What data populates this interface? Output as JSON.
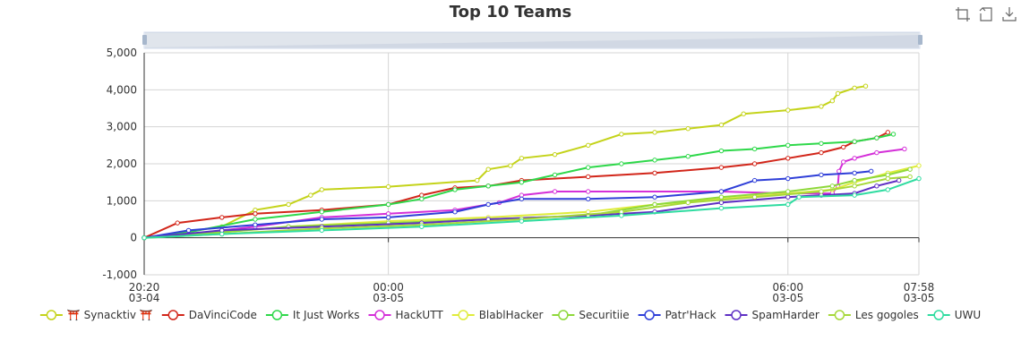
{
  "chart_data": {
    "type": "line",
    "title": "Top 10 Teams",
    "xlabel": "",
    "ylabel": "",
    "x_domain": [
      "2024-03-04 20:20",
      "2024-03-05 07:58"
    ],
    "ylim": [
      -1000,
      5000
    ],
    "y_ticks": [
      -1000,
      0,
      1000,
      2000,
      3000,
      4000,
      5000
    ],
    "y_tick_labels": [
      "-1,000",
      "0",
      "1,000",
      "2,000",
      "3,000",
      "4,000",
      "5,000"
    ],
    "x_ticks": [
      {
        "t": "2024-03-04 20:20",
        "time": "20:20",
        "date": "03-04"
      },
      {
        "t": "2024-03-05 00:00",
        "time": "00:00",
        "date": "03-05"
      },
      {
        "t": "2024-03-05 06:00",
        "time": "06:00",
        "date": "03-05"
      },
      {
        "t": "2024-03-05 07:58",
        "time": "07:58",
        "date": "03-05"
      }
    ],
    "grid": true,
    "legend_position": "bottom",
    "series": [
      {
        "name": "⛩️ Synacktiv ⛩️",
        "color": "#c4d31a",
        "points": [
          [
            "2024-03-04 20:20",
            0
          ],
          [
            "2024-03-04 21:30",
            300
          ],
          [
            "2024-03-04 22:00",
            750
          ],
          [
            "2024-03-04 22:30",
            900
          ],
          [
            "2024-03-04 22:50",
            1150
          ],
          [
            "2024-03-04 23:00",
            1300
          ],
          [
            "2024-03-05 00:00",
            1380
          ],
          [
            "2024-03-05 01:20",
            1550
          ],
          [
            "2024-03-05 01:30",
            1850
          ],
          [
            "2024-03-05 01:50",
            1950
          ],
          [
            "2024-03-05 02:00",
            2150
          ],
          [
            "2024-03-05 02:30",
            2250
          ],
          [
            "2024-03-05 03:00",
            2500
          ],
          [
            "2024-03-05 03:30",
            2800
          ],
          [
            "2024-03-05 04:00",
            2850
          ],
          [
            "2024-03-05 04:30",
            2950
          ],
          [
            "2024-03-05 05:00",
            3050
          ],
          [
            "2024-03-05 05:20",
            3350
          ],
          [
            "2024-03-05 06:00",
            3450
          ],
          [
            "2024-03-05 06:30",
            3550
          ],
          [
            "2024-03-05 06:40",
            3700
          ],
          [
            "2024-03-05 06:45",
            3900
          ],
          [
            "2024-03-05 07:00",
            4050
          ],
          [
            "2024-03-05 07:10",
            4100
          ]
        ]
      },
      {
        "name": "DaVinciCode",
        "color": "#d2261a",
        "points": [
          [
            "2024-03-04 20:20",
            0
          ],
          [
            "2024-03-04 20:50",
            400
          ],
          [
            "2024-03-04 21:30",
            550
          ],
          [
            "2024-03-04 22:00",
            650
          ],
          [
            "2024-03-04 23:00",
            750
          ],
          [
            "2024-03-05 00:00",
            900
          ],
          [
            "2024-03-05 00:30",
            1150
          ],
          [
            "2024-03-05 01:00",
            1350
          ],
          [
            "2024-03-05 01:30",
            1400
          ],
          [
            "2024-03-05 02:00",
            1550
          ],
          [
            "2024-03-05 03:00",
            1650
          ],
          [
            "2024-03-05 04:00",
            1750
          ],
          [
            "2024-03-05 05:00",
            1900
          ],
          [
            "2024-03-05 05:30",
            2000
          ],
          [
            "2024-03-05 06:00",
            2150
          ],
          [
            "2024-03-05 06:30",
            2300
          ],
          [
            "2024-03-05 06:50",
            2450
          ],
          [
            "2024-03-05 07:00",
            2600
          ],
          [
            "2024-03-05 07:20",
            2700
          ],
          [
            "2024-03-05 07:30",
            2850
          ]
        ]
      },
      {
        "name": "It Just Works",
        "color": "#2ed84a",
        "points": [
          [
            "2024-03-04 20:20",
            0
          ],
          [
            "2024-03-04 21:00",
            150
          ],
          [
            "2024-03-04 22:00",
            500
          ],
          [
            "2024-03-04 23:00",
            700
          ],
          [
            "2024-03-05 00:00",
            900
          ],
          [
            "2024-03-05 00:30",
            1050
          ],
          [
            "2024-03-05 01:00",
            1300
          ],
          [
            "2024-03-05 01:30",
            1400
          ],
          [
            "2024-03-05 02:00",
            1500
          ],
          [
            "2024-03-05 02:30",
            1700
          ],
          [
            "2024-03-05 03:00",
            1900
          ],
          [
            "2024-03-05 03:30",
            2000
          ],
          [
            "2024-03-05 04:00",
            2100
          ],
          [
            "2024-03-05 04:30",
            2200
          ],
          [
            "2024-03-05 05:00",
            2350
          ],
          [
            "2024-03-05 05:30",
            2400
          ],
          [
            "2024-03-05 06:00",
            2500
          ],
          [
            "2024-03-05 06:30",
            2550
          ],
          [
            "2024-03-05 07:00",
            2600
          ],
          [
            "2024-03-05 07:20",
            2700
          ],
          [
            "2024-03-05 07:35",
            2800
          ]
        ]
      },
      {
        "name": "HackUTT",
        "color": "#d42fd8",
        "points": [
          [
            "2024-03-04 20:20",
            0
          ],
          [
            "2024-03-04 21:00",
            100
          ],
          [
            "2024-03-04 22:00",
            300
          ],
          [
            "2024-03-04 23:00",
            550
          ],
          [
            "2024-03-05 00:00",
            650
          ],
          [
            "2024-03-05 01:00",
            750
          ],
          [
            "2024-03-05 01:40",
            950
          ],
          [
            "2024-03-05 02:00",
            1150
          ],
          [
            "2024-03-05 02:30",
            1250
          ],
          [
            "2024-03-05 03:00",
            1250
          ],
          [
            "2024-03-05 05:00",
            1250
          ],
          [
            "2024-03-05 06:00",
            1200
          ],
          [
            "2024-03-05 06:40",
            1200
          ],
          [
            "2024-03-05 06:45",
            1400
          ],
          [
            "2024-03-05 06:46",
            1800
          ],
          [
            "2024-03-05 06:50",
            2050
          ],
          [
            "2024-03-05 07:00",
            2150
          ],
          [
            "2024-03-05 07:20",
            2300
          ],
          [
            "2024-03-05 07:45",
            2400
          ]
        ]
      },
      {
        "name": "BlablHacker",
        "color": "#dfec3a",
        "points": [
          [
            "2024-03-04 20:20",
            0
          ],
          [
            "2024-03-04 21:30",
            150
          ],
          [
            "2024-03-04 22:30",
            300
          ],
          [
            "2024-03-05 00:00",
            450
          ],
          [
            "2024-03-05 01:30",
            550
          ],
          [
            "2024-03-05 03:00",
            700
          ],
          [
            "2024-03-05 04:00",
            900
          ],
          [
            "2024-03-05 05:00",
            1050
          ],
          [
            "2024-03-05 06:00",
            1200
          ],
          [
            "2024-03-05 06:40",
            1300
          ],
          [
            "2024-03-05 07:00",
            1500
          ],
          [
            "2024-03-05 07:30",
            1750
          ],
          [
            "2024-03-05 07:58",
            1950
          ]
        ]
      },
      {
        "name": "Securitiie",
        "color": "#8ed83a",
        "points": [
          [
            "2024-03-04 20:20",
            0
          ],
          [
            "2024-03-04 21:30",
            150
          ],
          [
            "2024-03-04 22:30",
            300
          ],
          [
            "2024-03-05 00:00",
            400
          ],
          [
            "2024-03-05 01:30",
            500
          ],
          [
            "2024-03-05 03:00",
            600
          ],
          [
            "2024-03-05 04:00",
            900
          ],
          [
            "2024-03-05 05:00",
            1100
          ],
          [
            "2024-03-05 06:00",
            1250
          ],
          [
            "2024-03-05 06:40",
            1400
          ],
          [
            "2024-03-05 07:00",
            1550
          ],
          [
            "2024-03-05 07:30",
            1700
          ],
          [
            "2024-03-05 07:50",
            1850
          ]
        ]
      },
      {
        "name": "Patr'Hack",
        "color": "#2f3fd8",
        "points": [
          [
            "2024-03-04 20:20",
            0
          ],
          [
            "2024-03-04 21:00",
            200
          ],
          [
            "2024-03-04 22:00",
            350
          ],
          [
            "2024-03-04 23:00",
            500
          ],
          [
            "2024-03-05 00:00",
            550
          ],
          [
            "2024-03-05 01:00",
            700
          ],
          [
            "2024-03-05 01:30",
            900
          ],
          [
            "2024-03-05 02:00",
            1050
          ],
          [
            "2024-03-05 03:00",
            1050
          ],
          [
            "2024-03-05 04:00",
            1100
          ],
          [
            "2024-03-05 05:00",
            1250
          ],
          [
            "2024-03-05 05:30",
            1550
          ],
          [
            "2024-03-05 06:00",
            1600
          ],
          [
            "2024-03-05 06:30",
            1700
          ],
          [
            "2024-03-05 07:00",
            1750
          ],
          [
            "2024-03-05 07:15",
            1800
          ]
        ]
      },
      {
        "name": "SpamHarder",
        "color": "#5e2fc4",
        "points": [
          [
            "2024-03-04 20:20",
            0
          ],
          [
            "2024-03-04 21:30",
            200
          ],
          [
            "2024-03-04 23:00",
            300
          ],
          [
            "2024-03-05 00:30",
            400
          ],
          [
            "2024-03-05 01:30",
            500
          ],
          [
            "2024-03-05 03:00",
            600
          ],
          [
            "2024-03-05 04:00",
            700
          ],
          [
            "2024-03-05 05:00",
            950
          ],
          [
            "2024-03-05 06:00",
            1100
          ],
          [
            "2024-03-05 06:30",
            1150
          ],
          [
            "2024-03-05 07:00",
            1200
          ],
          [
            "2024-03-05 07:20",
            1400
          ],
          [
            "2024-03-05 07:40",
            1550
          ]
        ]
      },
      {
        "name": "Les gogoles",
        "color": "#a6d83a",
        "points": [
          [
            "2024-03-04 20:20",
            0
          ],
          [
            "2024-03-04 21:30",
            100
          ],
          [
            "2024-03-04 23:00",
            250
          ],
          [
            "2024-03-05 00:30",
            350
          ],
          [
            "2024-03-05 02:00",
            500
          ],
          [
            "2024-03-05 03:30",
            700
          ],
          [
            "2024-03-05 04:30",
            950
          ],
          [
            "2024-03-05 05:30",
            1100
          ],
          [
            "2024-03-05 06:30",
            1250
          ],
          [
            "2024-03-05 07:00",
            1400
          ],
          [
            "2024-03-05 07:30",
            1600
          ],
          [
            "2024-03-05 07:50",
            1650
          ]
        ]
      },
      {
        "name": "UWU",
        "color": "#2fdca0",
        "points": [
          [
            "2024-03-04 20:20",
            0
          ],
          [
            "2024-03-04 21:30",
            100
          ],
          [
            "2024-03-04 23:00",
            200
          ],
          [
            "2024-03-05 00:30",
            300
          ],
          [
            "2024-03-05 02:00",
            450
          ],
          [
            "2024-03-05 03:30",
            600
          ],
          [
            "2024-03-05 05:00",
            800
          ],
          [
            "2024-03-05 06:00",
            900
          ],
          [
            "2024-03-05 06:10",
            1100
          ],
          [
            "2024-03-05 07:00",
            1150
          ],
          [
            "2024-03-05 07:30",
            1300
          ],
          [
            "2024-03-05 07:58",
            1600
          ]
        ]
      }
    ]
  }
}
